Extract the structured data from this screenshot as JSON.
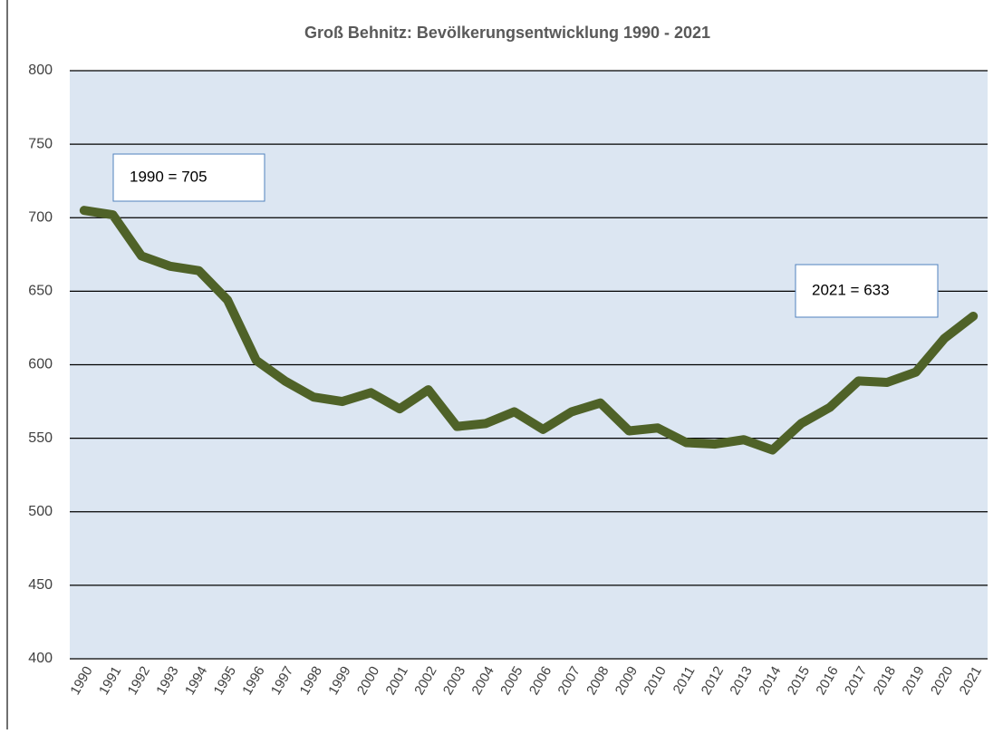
{
  "chart_data": {
    "type": "line",
    "title": "Groß Behnitz: Bevölkerungsentwicklung 1990 - 2021",
    "categories": [
      "1990",
      "1991",
      "1992",
      "1993",
      "1994",
      "1995",
      "1996",
      "1997",
      "1998",
      "1999",
      "2000",
      "2001",
      "2002",
      "2003",
      "2004",
      "2005",
      "2006",
      "2007",
      "2008",
      "2009",
      "2010",
      "2011",
      "2012",
      "2013",
      "2014",
      "2015",
      "2016",
      "2017",
      "2018",
      "2019",
      "2020",
      "2021"
    ],
    "series": [
      {
        "name": "Bevölkerung",
        "color": "#4f6228",
        "values": [
          705,
          702,
          674,
          667,
          664,
          644,
          603,
          589,
          578,
          575,
          581,
          570,
          583,
          558,
          560,
          568,
          556,
          568,
          574,
          555,
          557,
          547,
          546,
          549,
          542,
          560,
          571,
          589,
          588,
          595,
          618,
          633
        ]
      }
    ],
    "ylim": [
      400,
      800
    ],
    "yticks": [
      400,
      450,
      500,
      550,
      600,
      650,
      700,
      750,
      800
    ],
    "grid": true,
    "annotations": [
      "1990 = 705",
      "2021 = 633"
    ]
  }
}
